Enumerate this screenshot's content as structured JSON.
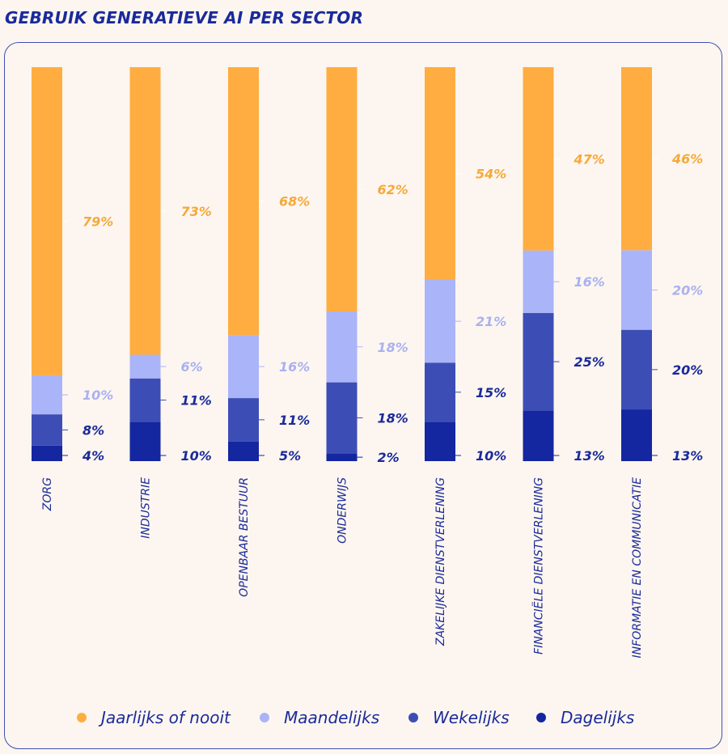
{
  "chart_data": {
    "type": "bar",
    "stacked": true,
    "orientation": "vertical",
    "title": "GEBRUIK GENERATIEVE AI PER SECTOR",
    "categories": [
      "ZORG",
      "INDUSTRIE",
      "OPENBAAR BESTUUR",
      "ONDERWIJS",
      "ZAKELIJKE DIENSTVERLENING",
      "FINANCIËLE DIENSTVERLENING",
      "INFORMATIE EN COMMUNICATIE"
    ],
    "series": [
      {
        "name": "Dagelijks",
        "color": "#1426a0",
        "label_color": "#1a2a9a",
        "values": [
          4,
          10,
          5,
          2,
          10,
          13,
          13
        ]
      },
      {
        "name": "Wekelijks",
        "color": "#3c4eb5",
        "label_color": "#1a2a9a",
        "values": [
          8,
          11,
          11,
          18,
          15,
          25,
          20
        ]
      },
      {
        "name": "Maandelijks",
        "color": "#aab4f8",
        "label_color": "#a9b1ef",
        "values": [
          10,
          6,
          16,
          18,
          21,
          16,
          20
        ]
      },
      {
        "name": "Jaarlijks of nooit",
        "color": "#ffad40",
        "label_color": "#f5a93a",
        "values": [
          79,
          73,
          68,
          62,
          54,
          47,
          46
        ]
      }
    ],
    "legend_order": [
      "Jaarlijks of nooit",
      "Maandelijks",
      "Wekelijks",
      "Dagelijks"
    ],
    "value_suffix": "%",
    "xlabel": "",
    "ylabel": "",
    "ylim": [
      0,
      100
    ]
  }
}
